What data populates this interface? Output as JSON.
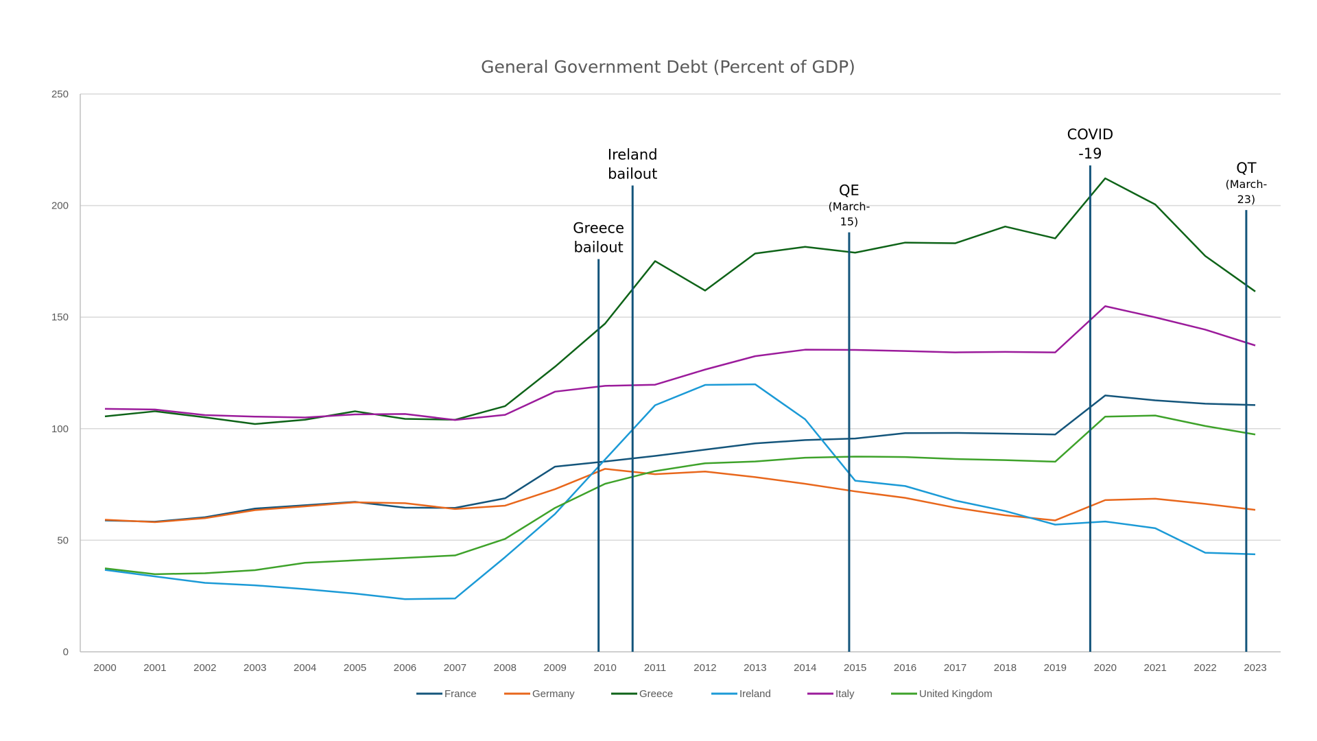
{
  "chart_data": {
    "type": "line",
    "title": "General Government Debt (Percent of GDP)",
    "xlabel": "",
    "ylabel": "",
    "ylim": [
      0,
      250
    ],
    "yticks": [
      0,
      50,
      100,
      150,
      200,
      250
    ],
    "grid": true,
    "legend_position": "bottom",
    "x": [
      "2000",
      "2001",
      "2002",
      "2003",
      "2004",
      "2005",
      "2006",
      "2007",
      "2008",
      "2009",
      "2010",
      "2011",
      "2012",
      "2013",
      "2014",
      "2015",
      "2016",
      "2017",
      "2018",
      "2019",
      "2020",
      "2021",
      "2022",
      "2023"
    ],
    "series": [
      {
        "name": "France",
        "color": "#14557b",
        "values": [
          58.9,
          58.3,
          60.3,
          64.2,
          65.7,
          67.2,
          64.6,
          64.5,
          68.8,
          83.0,
          85.3,
          87.8,
          90.6,
          93.4,
          94.9,
          95.6,
          98.0,
          98.1,
          97.8,
          97.4,
          114.9,
          112.7,
          111.2,
          110.6
        ]
      },
      {
        "name": "Germany",
        "color": "#e8671c",
        "values": [
          59.2,
          58.1,
          59.9,
          63.5,
          65.2,
          67.0,
          66.6,
          64.0,
          65.5,
          72.9,
          82.0,
          79.6,
          80.8,
          78.3,
          75.3,
          71.9,
          69.0,
          64.6,
          61.2,
          58.9,
          68.0,
          68.6,
          66.3,
          63.6
        ]
      },
      {
        "name": "Greece",
        "color": "#0e6318",
        "values": [
          105.5,
          107.8,
          105.1,
          102.1,
          104.0,
          107.8,
          104.4,
          104.0,
          110.1,
          127.8,
          147.1,
          175.1,
          161.9,
          178.5,
          181.5,
          178.9,
          183.4,
          183.1,
          190.6,
          185.3,
          212.2,
          200.5,
          177.4,
          161.5
        ]
      },
      {
        "name": "Ireland",
        "color": "#1b9ad6",
        "values": [
          36.7,
          33.8,
          30.9,
          29.8,
          28.1,
          26.1,
          23.6,
          23.9,
          42.4,
          61.8,
          86.2,
          110.5,
          119.6,
          119.9,
          104.2,
          76.7,
          74.3,
          67.8,
          63.1,
          57.0,
          58.4,
          55.4,
          44.4,
          43.7
        ]
      },
      {
        "name": "Italy",
        "color": "#9b1b9b",
        "values": [
          108.9,
          108.6,
          106.1,
          105.4,
          105.0,
          106.4,
          106.6,
          103.9,
          106.2,
          116.6,
          119.2,
          119.7,
          126.5,
          132.5,
          135.4,
          135.3,
          134.8,
          134.2,
          134.4,
          134.2,
          154.9,
          149.9,
          144.4,
          137.3
        ]
      },
      {
        "name": "United Kingdom",
        "color": "#3ea22a",
        "values": [
          37.4,
          34.8,
          35.2,
          36.6,
          39.9,
          41.0,
          42.1,
          43.2,
          50.6,
          64.5,
          75.3,
          81.0,
          84.5,
          85.3,
          87.0,
          87.5,
          87.3,
          86.4,
          85.9,
          85.2,
          105.4,
          105.9,
          101.2,
          97.4
        ]
      }
    ],
    "annotations": [
      {
        "label_lines": [
          "Greece",
          "bailout"
        ],
        "x_year": 2009.87,
        "line_top_value": 176
      },
      {
        "label_lines": [
          "Ireland",
          "bailout"
        ],
        "x_year": 2010.55,
        "line_top_value": 209
      },
      {
        "label_lines": [
          "QE",
          "(March-",
          "15)"
        ],
        "x_year": 2014.88,
        "line_top_value": 188
      },
      {
        "label_lines": [
          "COVID",
          "-19"
        ],
        "x_year": 2019.7,
        "line_top_value": 218
      },
      {
        "label_lines": [
          "QT",
          "(March-",
          "23)"
        ],
        "x_year": 2022.82,
        "line_top_value": 198
      }
    ],
    "annotation_line_color": "#14557b",
    "gridline_color": "#d9d9d9"
  }
}
